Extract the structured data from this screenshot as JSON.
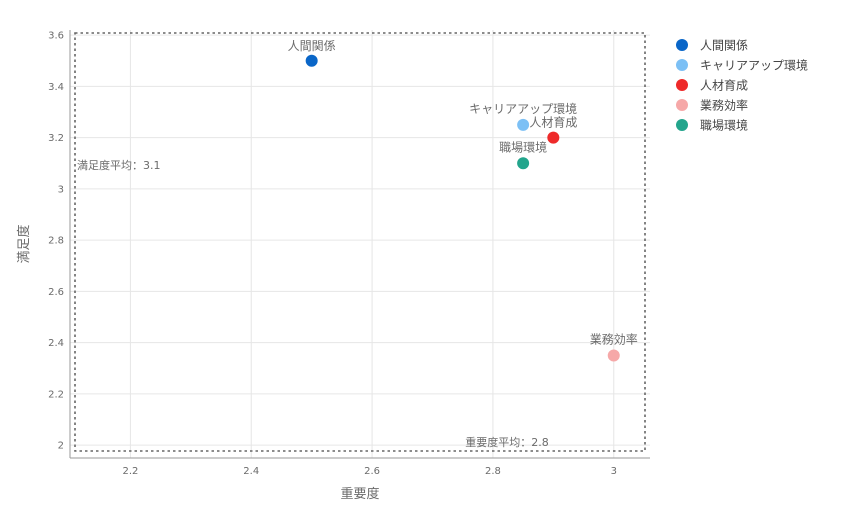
{
  "chart_data": {
    "type": "scatter",
    "title": "",
    "xlabel": "重要度",
    "ylabel": "満足度",
    "xlim": [
      2.1,
      3.06
    ],
    "ylim": [
      1.95,
      3.62
    ],
    "xticks": [
      2.2,
      2.4,
      2.6,
      2.8,
      3
    ],
    "xtick_labels": [
      "2.2",
      "2.4",
      "2.6",
      "2.8",
      "3"
    ],
    "yticks": [
      2,
      2.2,
      2.4,
      2.6,
      2.8,
      3,
      3.2,
      3.4,
      3.6
    ],
    "ytick_labels": [
      "2",
      "2.2",
      "2.4",
      "2.6",
      "2.8",
      "3",
      "3.2",
      "3.4",
      "3.6"
    ],
    "grid": true,
    "legend_position": "right",
    "series": [
      {
        "name": "人間関係",
        "x": 2.5,
        "y": 3.5,
        "color": "#0a66c8"
      },
      {
        "name": "キャリアアップ環境",
        "x": 2.85,
        "y": 3.25,
        "color": "#7cc0f5"
      },
      {
        "name": "人材育成",
        "x": 2.9,
        "y": 3.2,
        "color": "#ee2a2a"
      },
      {
        "name": "業務効率",
        "x": 3.0,
        "y": 2.35,
        "color": "#f6a8a8"
      },
      {
        "name": "職場環境",
        "x": 2.85,
        "y": 3.1,
        "color": "#23a58c"
      }
    ],
    "reference_lines": {
      "y_average_label": "満足度平均：3.1",
      "x_average_label": "重要度平均：2.8"
    }
  }
}
